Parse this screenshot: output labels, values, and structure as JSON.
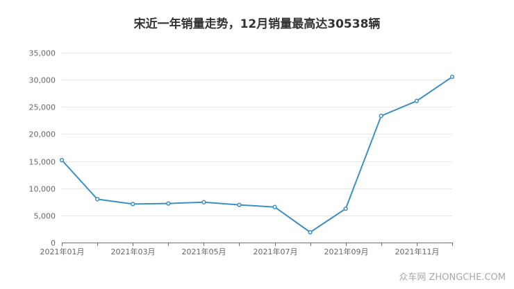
{
  "chart_data": {
    "type": "line",
    "title": "宋近一年销量走势，12月销量最高达30538辆",
    "xlabel": "",
    "ylabel": "",
    "x": [
      "2021年01月",
      "2021年02月",
      "2021年03月",
      "2021年04月",
      "2021年05月",
      "2021年06月",
      "2021年07月",
      "2021年08月",
      "2021年09月",
      "2021年10月",
      "2021年11月",
      "2021年12月"
    ],
    "x_tick_labels": [
      "2021年01月",
      "",
      "2021年03月",
      "",
      "2021年05月",
      "",
      "2021年07月",
      "",
      "2021年09月",
      "",
      "2021年11月",
      ""
    ],
    "y_ticks": [
      "0",
      "5,000",
      "10,000",
      "15,000",
      "20,000",
      "25,000",
      "30,000",
      "35,000"
    ],
    "series": [
      {
        "values": [
          15200,
          8000,
          7100,
          7200,
          7450,
          6950,
          6550,
          1900,
          6250,
          23350,
          26100,
          30538
        ]
      }
    ],
    "ylim": [
      0,
      35000
    ],
    "grid": true,
    "line_color": "#3b8fc4"
  },
  "watermark": "众车网 ZHONGCHE.COM"
}
